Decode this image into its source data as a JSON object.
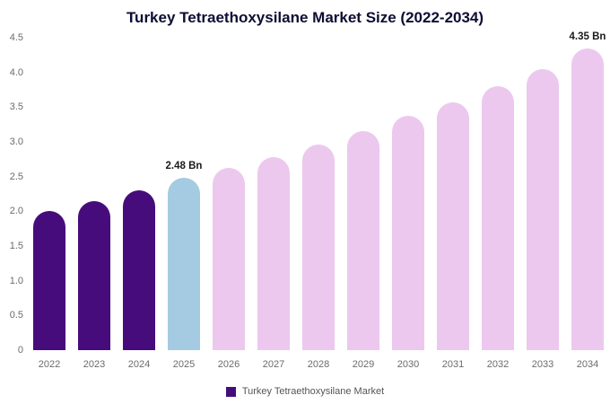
{
  "chart": {
    "legend": {
      "label": "Turkey Tetraethoxysilane Market",
      "color": "#470c7c"
    }
  },
  "chart_data": {
    "type": "bar",
    "title": "Turkey Tetraethoxysilane Market Size (2022-2034)",
    "xlabel": "",
    "ylabel": "",
    "categories": [
      "2022",
      "2023",
      "2024",
      "2025",
      "2026",
      "2027",
      "2028",
      "2029",
      "2030",
      "2031",
      "2032",
      "2033",
      "2034"
    ],
    "values": [
      2.0,
      2.15,
      2.3,
      2.48,
      2.62,
      2.78,
      2.96,
      3.15,
      3.37,
      3.57,
      3.8,
      4.05,
      4.35
    ],
    "bar_colors": [
      "#470c7c",
      "#470c7c",
      "#470c7c",
      "#a4cbe1",
      "#ecc8ee",
      "#ecc8ee",
      "#ecc8ee",
      "#ecc8ee",
      "#ecc8ee",
      "#ecc8ee",
      "#ecc8ee",
      "#ecc8ee",
      "#ecc8ee"
    ],
    "annotations": [
      {
        "index": 3,
        "text": "2.48 Bn"
      },
      {
        "index": 12,
        "text": "4.35 Bn"
      }
    ],
    "ylim": [
      0,
      4.5
    ],
    "yticks": [
      0,
      0.5,
      1.0,
      1.5,
      2.0,
      2.5,
      3.0,
      3.5,
      4.0,
      4.5
    ],
    "ytick_labels": [
      "0",
      "0.5",
      "1.0",
      "1.5",
      "2.0",
      "2.5",
      "3.0",
      "3.5",
      "4.0",
      "4.5"
    ],
    "grid": false,
    "legend_position": "bottom",
    "series_name": "Turkey Tetraethoxysilane Market"
  }
}
